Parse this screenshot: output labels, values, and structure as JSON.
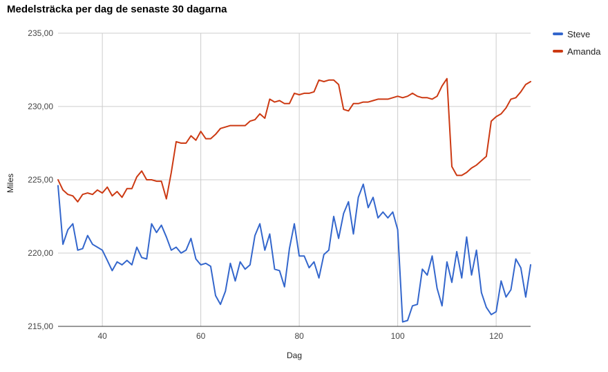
{
  "chart_data": {
    "type": "line",
    "title": "Medelsträcka per dag de senaste 30 dagarna",
    "xlabel": "Dag",
    "ylabel": "Miles",
    "xlim": [
      31,
      127
    ],
    "ylim": [
      215,
      235
    ],
    "x_ticks": [
      40,
      60,
      80,
      100,
      120
    ],
    "y_ticks": [
      215,
      220,
      225,
      230,
      235
    ],
    "y_tick_labels": [
      "215,00",
      "220,00",
      "225,00",
      "230,00",
      "235,00"
    ],
    "grid": true,
    "legend_position": "top-right",
    "series": [
      {
        "name": "Steve",
        "color": "#3366cc",
        "x": [
          31,
          32,
          33,
          34,
          35,
          36,
          37,
          38,
          39,
          40,
          41,
          42,
          43,
          44,
          45,
          46,
          47,
          48,
          49,
          50,
          51,
          52,
          53,
          54,
          55,
          56,
          57,
          58,
          59,
          60,
          61,
          62,
          63,
          64,
          65,
          66,
          67,
          68,
          69,
          70,
          71,
          72,
          73,
          74,
          75,
          76,
          77,
          78,
          79,
          80,
          81,
          82,
          83,
          84,
          85,
          86,
          87,
          88,
          89,
          90,
          91,
          92,
          93,
          94,
          95,
          96,
          97,
          98,
          99,
          100,
          101,
          102,
          103,
          104,
          105,
          106,
          107,
          108,
          109,
          110,
          111,
          112,
          113,
          114,
          115,
          116,
          117,
          118,
          119,
          120,
          121,
          122,
          123,
          124,
          125,
          126,
          127
        ],
        "values": [
          224.6,
          220.6,
          221.6,
          222.0,
          220.2,
          220.3,
          221.2,
          220.6,
          220.4,
          220.2,
          219.5,
          218.8,
          219.4,
          219.2,
          219.5,
          219.2,
          220.4,
          219.7,
          219.6,
          222.0,
          221.4,
          221.9,
          221.1,
          220.2,
          220.4,
          220.0,
          220.2,
          221.0,
          219.6,
          219.2,
          219.3,
          219.1,
          217.1,
          216.5,
          217.4,
          219.3,
          218.1,
          219.4,
          218.9,
          219.2,
          221.2,
          222.0,
          220.2,
          221.3,
          218.9,
          218.8,
          217.7,
          220.3,
          222.0,
          219.8,
          219.8,
          219.0,
          219.4,
          218.3,
          219.9,
          220.2,
          222.5,
          221.0,
          222.7,
          223.5,
          221.3,
          223.8,
          224.7,
          223.1,
          223.8,
          222.4,
          222.8,
          222.4,
          222.8,
          221.6,
          215.3,
          215.4,
          216.4,
          216.5,
          218.9,
          218.5,
          219.8,
          217.6,
          216.4,
          219.4,
          218.0,
          220.1,
          218.3,
          221.1,
          218.5,
          220.2,
          217.3,
          216.3,
          215.8,
          216.0,
          218.1,
          217.0,
          217.5,
          219.6,
          219.0,
          217.0,
          219.2
        ]
      },
      {
        "name": "Amanda",
        "color": "#cc3912",
        "x": [
          31,
          32,
          33,
          34,
          35,
          36,
          37,
          38,
          39,
          40,
          41,
          42,
          43,
          44,
          45,
          46,
          47,
          48,
          49,
          50,
          51,
          52,
          53,
          54,
          55,
          56,
          57,
          58,
          59,
          60,
          61,
          62,
          63,
          64,
          65,
          66,
          67,
          68,
          69,
          70,
          71,
          72,
          73,
          74,
          75,
          76,
          77,
          78,
          79,
          80,
          81,
          82,
          83,
          84,
          85,
          86,
          87,
          88,
          89,
          90,
          91,
          92,
          93,
          94,
          95,
          96,
          97,
          98,
          99,
          100,
          101,
          102,
          103,
          104,
          105,
          106,
          107,
          108,
          109,
          110,
          111,
          112,
          113,
          114,
          115,
          116,
          117,
          118,
          119,
          120,
          121,
          122,
          123,
          124,
          125,
          126,
          127
        ],
        "values": [
          225.0,
          224.3,
          224.0,
          223.9,
          223.5,
          224.0,
          224.1,
          224.0,
          224.3,
          224.1,
          224.5,
          223.9,
          224.2,
          223.8,
          224.4,
          224.4,
          225.2,
          225.6,
          225.0,
          225.0,
          224.9,
          224.9,
          223.7,
          225.5,
          227.6,
          227.5,
          227.5,
          228.0,
          227.7,
          228.3,
          227.8,
          227.8,
          228.1,
          228.5,
          228.6,
          228.7,
          228.7,
          228.7,
          228.7,
          229.0,
          229.1,
          229.5,
          229.2,
          230.5,
          230.3,
          230.4,
          230.2,
          230.2,
          230.9,
          230.8,
          230.9,
          230.9,
          231.0,
          231.8,
          231.7,
          231.8,
          231.8,
          231.5,
          229.8,
          229.7,
          230.2,
          230.2,
          230.3,
          230.3,
          230.4,
          230.5,
          230.5,
          230.5,
          230.6,
          230.7,
          230.6,
          230.7,
          230.9,
          230.7,
          230.6,
          230.6,
          230.5,
          230.7,
          231.4,
          231.9,
          225.9,
          225.3,
          225.3,
          225.5,
          225.8,
          226.0,
          226.3,
          226.6,
          229.0,
          229.3,
          229.5,
          229.9,
          230.5,
          230.6,
          231.0,
          231.5,
          231.7
        ]
      }
    ]
  }
}
